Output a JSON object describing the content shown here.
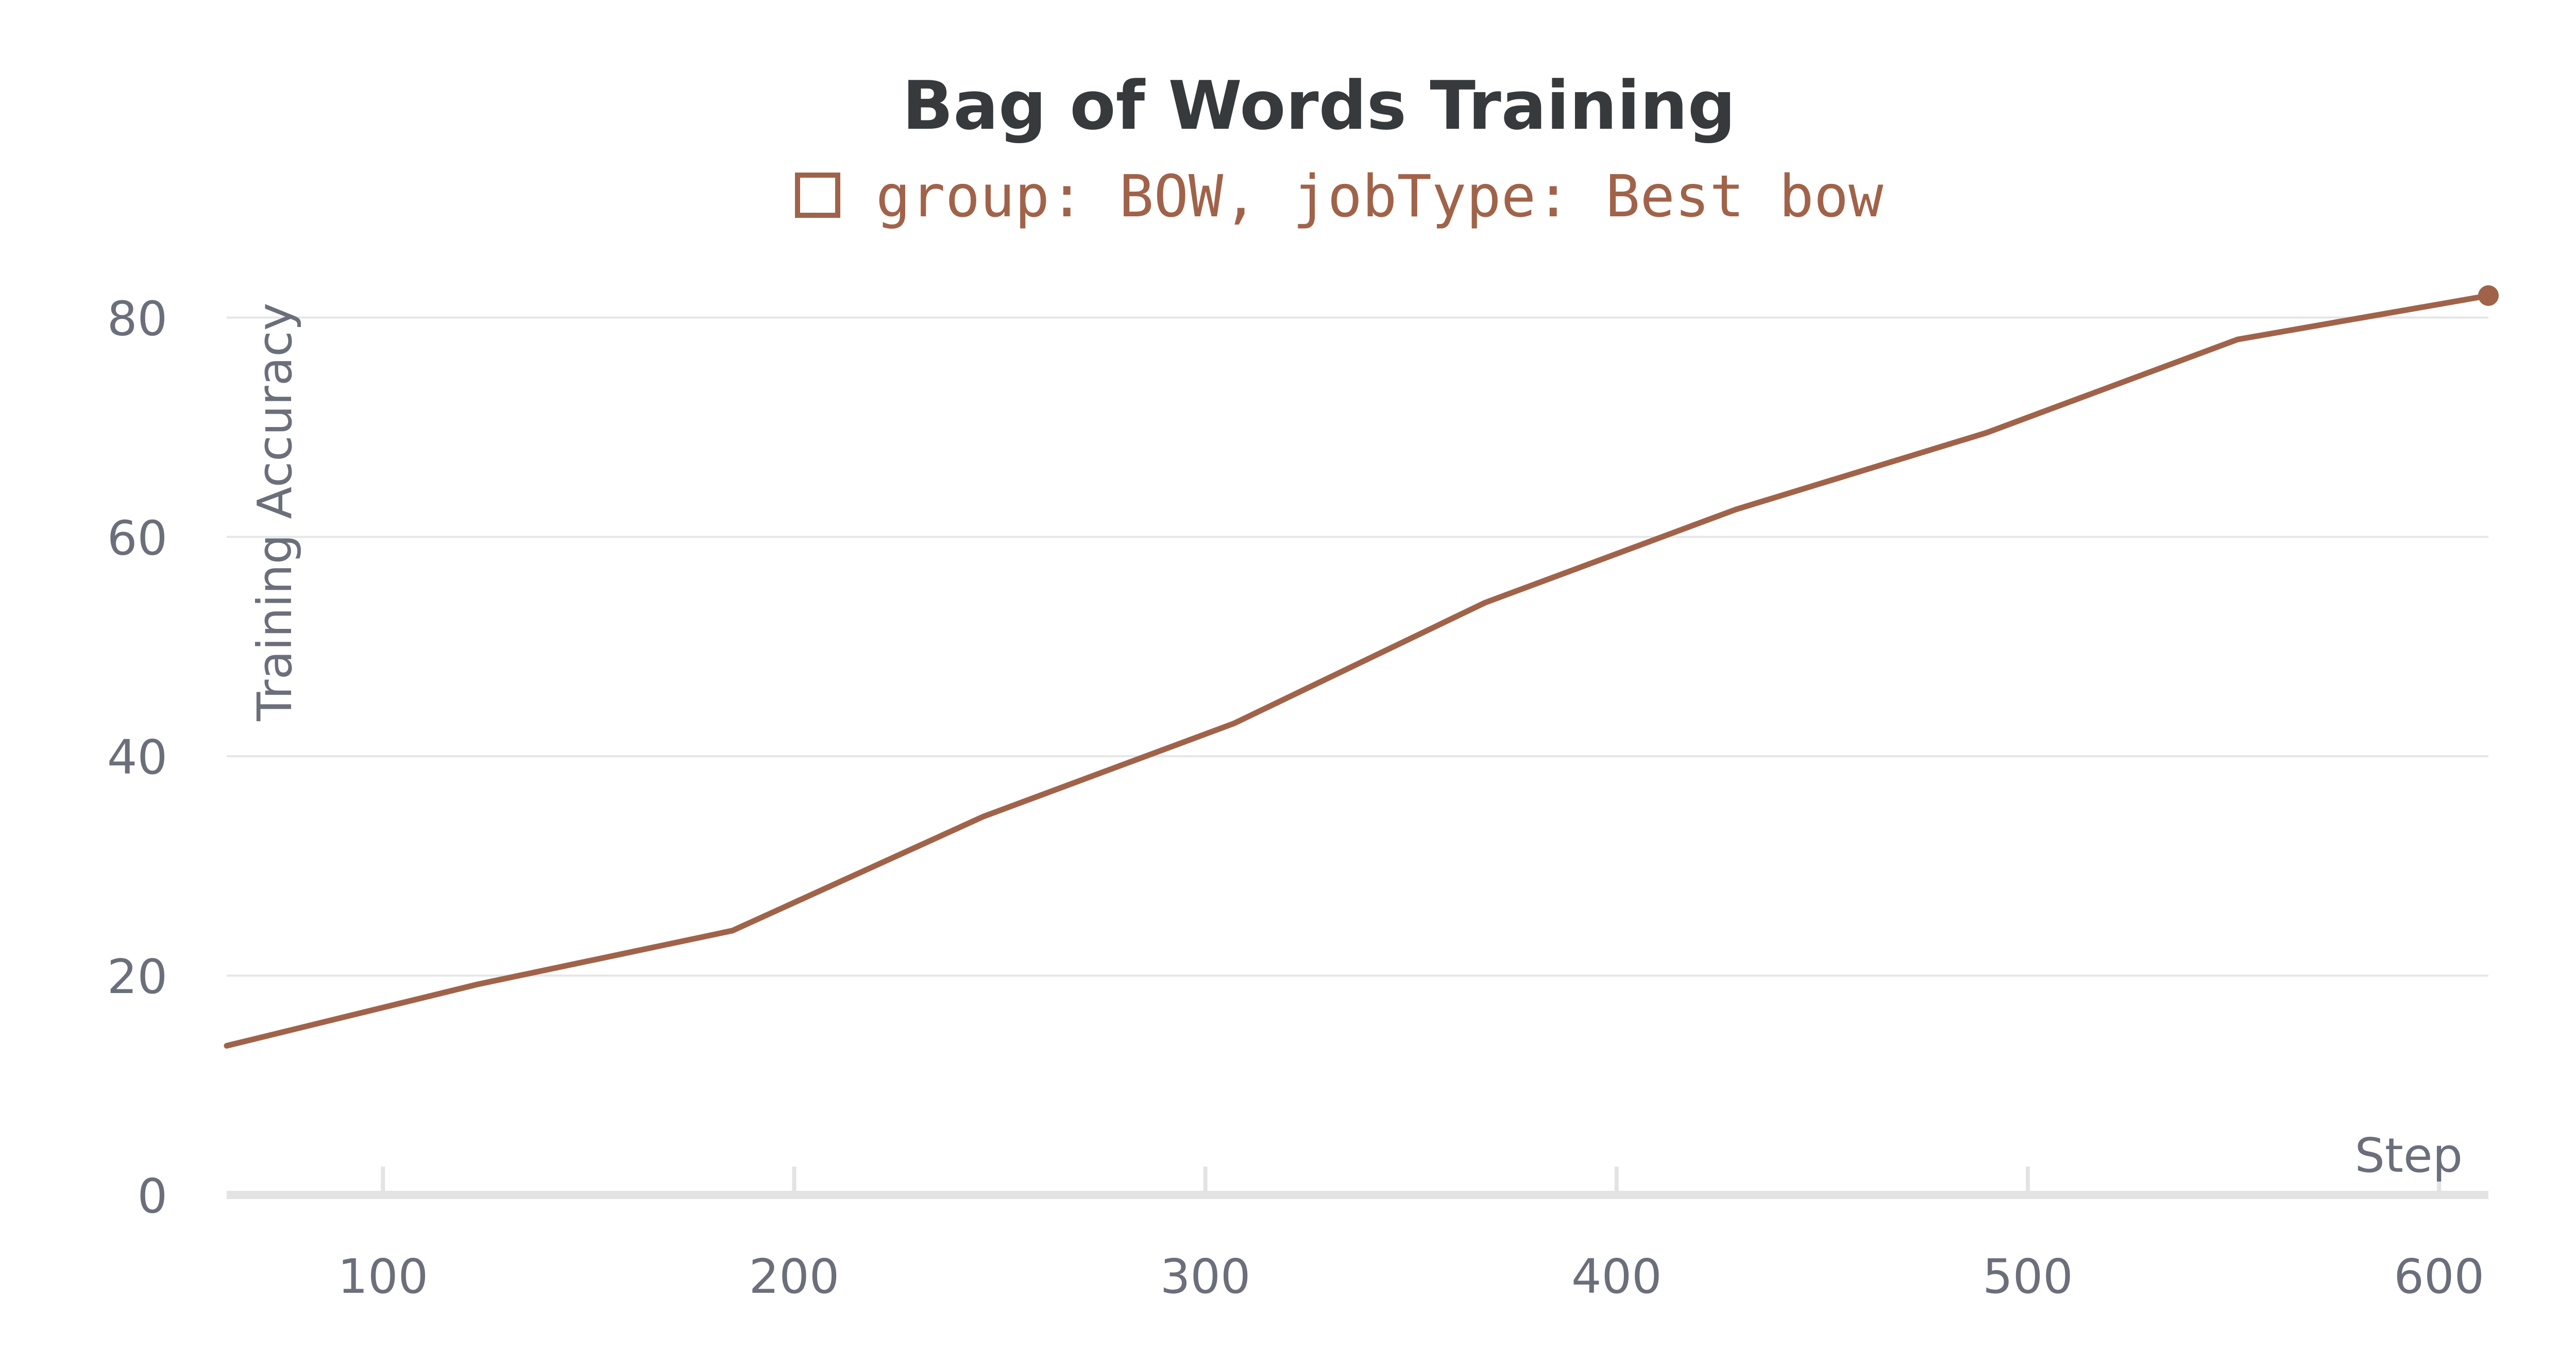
{
  "chart_data": {
    "type": "line",
    "title": "Bag of Words Training",
    "xlabel": "Step",
    "ylabel": "Training Accuracy",
    "xlim": [
      62,
      612
    ],
    "ylim": [
      0,
      85
    ],
    "x_ticks": [
      100,
      200,
      300,
      400,
      500,
      600
    ],
    "y_ticks": [
      0,
      20,
      40,
      60,
      80
    ],
    "grid": true,
    "legend": "top-center",
    "series": [
      {
        "name": "group: BOW, jobType: Best bow",
        "color": "#a0634a",
        "x": [
          62,
          123,
          185,
          246,
          307,
          368,
          429,
          490,
          551,
          612
        ],
        "y": [
          13.6,
          19.2,
          24.1,
          34.5,
          43.0,
          54.0,
          62.5,
          69.5,
          78.0,
          82.0
        ]
      }
    ]
  }
}
